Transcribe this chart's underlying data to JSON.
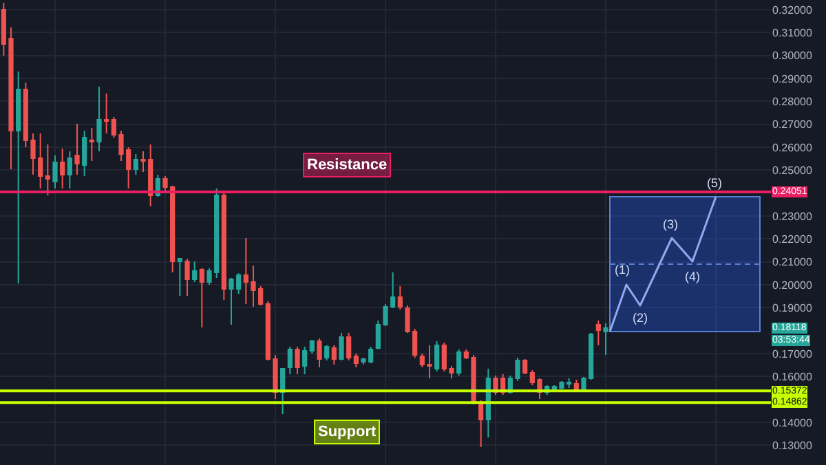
{
  "chart_data": {
    "type": "candlestick",
    "categories": [
      null,
      null,
      null,
      null,
      null,
      null,
      null,
      null,
      null,
      null,
      null,
      null,
      null,
      null,
      null,
      null,
      null,
      null,
      null,
      null,
      null,
      null,
      null,
      null,
      null,
      null,
      null,
      null,
      null,
      null,
      null,
      null,
      null,
      null,
      null,
      null,
      null,
      null,
      null,
      null,
      null,
      null,
      null,
      null,
      null,
      null,
      null,
      null,
      null,
      null,
      null,
      null,
      null,
      null,
      null,
      null,
      null,
      null,
      null,
      null,
      null,
      null,
      null,
      null,
      null,
      null,
      null,
      null,
      null,
      null,
      null,
      null,
      null,
      null,
      null,
      null,
      null,
      null,
      null,
      null,
      null,
      null,
      null,
      null,
      null,
      null,
      null,
      null,
      null,
      null,
      null,
      null,
      null,
      null,
      null,
      null,
      null,
      null,
      null,
      null,
      null,
      null,
      null,
      null,
      null
    ],
    "ohlc": [
      [
        0.32,
        0.323,
        0.3,
        0.305
      ],
      [
        0.3074,
        0.3122,
        0.2504,
        0.2672
      ],
      [
        0.2672,
        0.293,
        0.2006,
        0.2852
      ],
      [
        0.2852,
        0.2882,
        0.26,
        0.263
      ],
      [
        0.263,
        0.266,
        0.248,
        0.2552
      ],
      [
        0.2552,
        0.266,
        0.242,
        0.2474
      ],
      [
        0.2474,
        0.2612,
        0.239,
        0.2462
      ],
      [
        0.245,
        0.2564,
        0.242,
        0.2534
      ],
      [
        0.2534,
        0.2594,
        0.242,
        0.248
      ],
      [
        0.248,
        0.2582,
        0.242,
        0.2552
      ],
      [
        0.2564,
        0.2702,
        0.248,
        0.2528
      ],
      [
        0.2522,
        0.2672,
        0.2474,
        0.2642
      ],
      [
        0.263,
        0.2684,
        0.254,
        0.2624
      ],
      [
        0.2624,
        0.2864,
        0.2582,
        0.272
      ],
      [
        0.272,
        0.2834,
        0.266,
        0.2714
      ],
      [
        0.272,
        0.2732,
        0.2642,
        0.2654
      ],
      [
        0.2654,
        0.2672,
        0.254,
        0.257
      ],
      [
        0.2588,
        0.26,
        0.242,
        0.2504
      ],
      [
        0.2504,
        0.257,
        0.248,
        0.2546
      ],
      [
        0.2546,
        0.2582,
        0.2492,
        0.254
      ],
      [
        0.2546,
        0.2612,
        0.2342,
        0.239
      ],
      [
        0.239,
        0.248,
        0.2384,
        0.2462
      ],
      [
        0.2462,
        0.2474,
        0.2402,
        0.2426
      ],
      [
        0.2426,
        0.2432,
        0.2054,
        0.2102
      ],
      [
        0.2102,
        0.2114,
        0.1952,
        0.2114
      ],
      [
        0.2102,
        0.2114,
        0.1952,
        0.2024
      ],
      [
        0.2024,
        0.2102,
        0.2012,
        0.206
      ],
      [
        0.2066,
        0.2072,
        0.1814,
        0.2012
      ],
      [
        0.2012,
        0.2072,
        0.2,
        0.206
      ],
      [
        0.2054,
        0.242,
        0.203,
        0.239
      ],
      [
        0.239,
        0.2402,
        0.1934,
        0.1982
      ],
      [
        0.1982,
        0.203,
        0.1826,
        0.2024
      ],
      [
        0.1982,
        0.205,
        0.196,
        0.2042
      ],
      [
        0.2042,
        0.2204,
        0.1916,
        0.2012
      ],
      [
        0.2012,
        0.2084,
        0.1904,
        0.1976
      ],
      [
        0.1982,
        0.1994,
        0.191,
        0.1916
      ],
      [
        0.1916,
        0.1928,
        0.167,
        0.1676
      ],
      [
        0.1676,
        0.1694,
        0.1502,
        0.1532
      ],
      [
        0.1532,
        0.1634,
        0.1436,
        0.1634
      ],
      [
        0.164,
        0.173,
        0.161,
        0.1718
      ],
      [
        0.1718,
        0.173,
        0.161,
        0.164
      ],
      [
        0.1646,
        0.173,
        0.161,
        0.1712
      ],
      [
        0.1712,
        0.176,
        0.17,
        0.1754
      ],
      [
        0.1754,
        0.1766,
        0.164,
        0.1676
      ],
      [
        0.1682,
        0.1736,
        0.167,
        0.173
      ],
      [
        0.1724,
        0.1736,
        0.1652,
        0.1676
      ],
      [
        0.1676,
        0.179,
        0.167,
        0.1772
      ],
      [
        0.1772,
        0.179,
        0.167,
        0.1682
      ],
      [
        0.1688,
        0.17,
        0.164,
        0.1658
      ],
      [
        0.1664,
        0.1682,
        0.1652,
        0.1676
      ],
      [
        0.1664,
        0.173,
        0.1658,
        0.1718
      ],
      [
        0.1724,
        0.1844,
        0.1718,
        0.1826
      ],
      [
        0.1826,
        0.1916,
        0.182,
        0.1904
      ],
      [
        0.1904,
        0.2054,
        0.1898,
        0.1946
      ],
      [
        0.1946,
        0.1994,
        0.1892,
        0.1904
      ],
      [
        0.1898,
        0.191,
        0.179,
        0.1796
      ],
      [
        0.1796,
        0.1808,
        0.1682,
        0.1694
      ],
      [
        0.1688,
        0.17,
        0.164,
        0.1652
      ],
      [
        0.1652,
        0.1736,
        0.1592,
        0.1646
      ],
      [
        0.1634,
        0.1754,
        0.1622,
        0.1736
      ],
      [
        0.1736,
        0.1748,
        0.1622,
        0.1634
      ],
      [
        0.1634,
        0.1646,
        0.1592,
        0.1616
      ],
      [
        0.1616,
        0.1718,
        0.1604,
        0.1706
      ],
      [
        0.1706,
        0.1718,
        0.1676,
        0.1682
      ],
      [
        0.1682,
        0.1694,
        0.1478,
        0.1484
      ],
      [
        0.1484,
        0.1496,
        0.1292,
        0.1412
      ],
      [
        0.1412,
        0.1634,
        0.1334,
        0.1592
      ],
      [
        0.1592,
        0.1604,
        0.152,
        0.1532
      ],
      [
        0.1592,
        0.161,
        0.152,
        0.1532
      ],
      [
        0.1532,
        0.1604,
        0.1526,
        0.1592
      ],
      [
        0.1592,
        0.1682,
        0.158,
        0.167
      ],
      [
        0.167,
        0.1676,
        0.161,
        0.1616
      ],
      [
        0.1616,
        0.1628,
        0.1562,
        0.1574
      ],
      [
        0.1586,
        0.1592,
        0.1502,
        0.1532
      ],
      [
        0.1532,
        0.1562,
        0.152,
        0.1556
      ],
      [
        0.1544,
        0.1562,
        0.1532,
        0.1556
      ],
      [
        0.155,
        0.158,
        0.1544,
        0.1574
      ],
      [
        0.1568,
        0.1592,
        0.155,
        0.1574
      ],
      [
        0.1568,
        0.1586,
        0.1538,
        0.1544
      ],
      [
        0.1544,
        0.1598,
        0.1538,
        0.1592
      ],
      [
        0.1592,
        0.179,
        0.1586,
        0.1784
      ],
      [
        0.1826,
        0.1844,
        0.1736,
        0.1802
      ],
      [
        0.1796,
        0.1832,
        0.1694,
        0.18118
      ],
      null,
      null,
      null,
      null,
      null,
      null,
      null,
      null,
      null,
      null,
      null,
      null,
      null,
      null,
      null,
      null,
      null,
      null,
      null,
      null,
      null,
      null
    ],
    "ylim": [
      0.1214,
      0.3242
    ],
    "yticks": [
      {
        "value": 0.13,
        "label": "0.13000"
      },
      {
        "value": 0.14,
        "label": "0.14000"
      },
      {
        "value": 0.16,
        "label": "0.16000"
      },
      {
        "value": 0.17,
        "label": "0.17000"
      },
      {
        "value": 0.19,
        "label": "0.19000"
      },
      {
        "value": 0.2,
        "label": "0.20000"
      },
      {
        "value": 0.21,
        "label": "0.21000"
      },
      {
        "value": 0.22,
        "label": "0.22000"
      },
      {
        "value": 0.23,
        "label": "0.23000"
      },
      {
        "value": 0.25,
        "label": "0.25000"
      },
      {
        "value": 0.26,
        "label": "0.26000"
      },
      {
        "value": 0.27,
        "label": "0.27000"
      },
      {
        "value": 0.28,
        "label": "0.28000"
      },
      {
        "value": 0.29,
        "label": "0.29000"
      },
      {
        "value": 0.3,
        "label": "0.30000"
      },
      {
        "value": 0.31,
        "label": "0.31000"
      },
      {
        "value": 0.32,
        "label": "0.32000"
      }
    ],
    "tick_labels": "y",
    "grid": true,
    "ref_lines": [
      {
        "axis": "y",
        "value": 0.24051,
        "label": "Resistance",
        "color": "#e91e63"
      },
      {
        "axis": "y",
        "value": 0.15372,
        "label": null,
        "color": "#c6ff00"
      },
      {
        "axis": "y",
        "value": 0.14862,
        "label": "Support",
        "color": "#c6ff00"
      }
    ],
    "annotations": [
      "(1)",
      "(2)",
      "(3)",
      "(4)",
      "(5)",
      {
        "text": "0.24051",
        "y": 0.24051
      },
      {
        "text": "0.18118",
        "y": 0.18118
      },
      "03:53:44",
      {
        "text": "0.15372",
        "y": 0.15372
      },
      {
        "text": "0.14862",
        "y": 0.14862
      }
    ]
  }
}
